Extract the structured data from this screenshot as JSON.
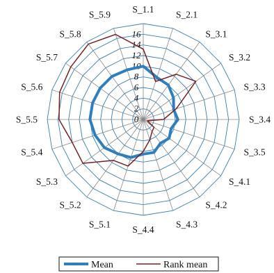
{
  "chart_data": {
    "type": "radar",
    "categories": [
      "S_1.1",
      "S_2.1",
      "S_3.1",
      "S_3.2",
      "S_3.3",
      "S_3.4",
      "S_3.5",
      "S_4.1",
      "S_4.2",
      "S_4.3",
      "S_4.4",
      "S_5.1",
      "S_5.2",
      "S_5.3",
      "S_5.4",
      "S_5.5",
      "S_5.6",
      "S_5.7",
      "S_5.8",
      "S_5.9"
    ],
    "rlim": [
      0,
      18
    ],
    "ticks": [
      0,
      2,
      4,
      6,
      8,
      10,
      12,
      14,
      16
    ],
    "tick_labels": [
      "0",
      "2",
      "4",
      "6",
      "8",
      "10",
      "12",
      "14",
      "16"
    ],
    "grid": true,
    "legend_position": "bottom",
    "series": [
      {
        "name": "Mean",
        "color": "#2f7fbf",
        "values": [
          10.0,
          8.3,
          8.0,
          7.0,
          6.0,
          6.5,
          5.5,
          6.0,
          5.5,
          6.5,
          6.5,
          7.5,
          8.0,
          9.0,
          9.5,
          10.0,
          10.0,
          10.0,
          10.0,
          9.8
        ]
      },
      {
        "name": "Rank mean",
        "color": "#7a1f1f",
        "values": [
          13.2,
          7.5,
          10.5,
          12.2,
          6.5,
          3.8,
          0.8,
          2.5,
          2.8,
          4.0,
          6.0,
          9.2,
          9.5,
          14.0,
          14.0,
          15.8,
          16.5,
          16.8,
          17.5,
          16.8
        ]
      }
    ]
  }
}
